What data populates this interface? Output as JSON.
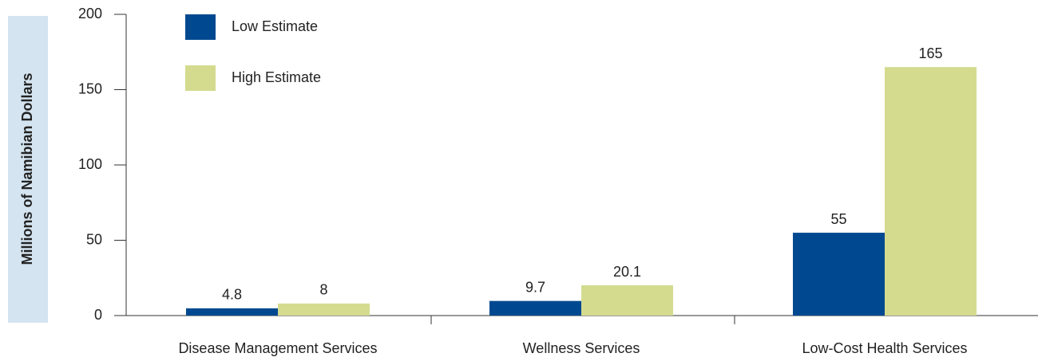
{
  "chart_data": {
    "type": "bar",
    "ylabel": "Millions of Namibian Dollars",
    "categories": [
      "Disease Management Services",
      "Wellness Services",
      "Low-Cost Health Services"
    ],
    "series": [
      {
        "name": "Low Estimate",
        "color": "#004990",
        "values": [
          4.8,
          9.7,
          55
        ]
      },
      {
        "name": "High Estimate",
        "color": "#d4db8f",
        "values": [
          8,
          20.1,
          165
        ]
      }
    ],
    "ylim": [
      0,
      200
    ],
    "yticks": [
      0,
      50,
      100,
      150,
      200
    ],
    "legend": "top-left"
  }
}
